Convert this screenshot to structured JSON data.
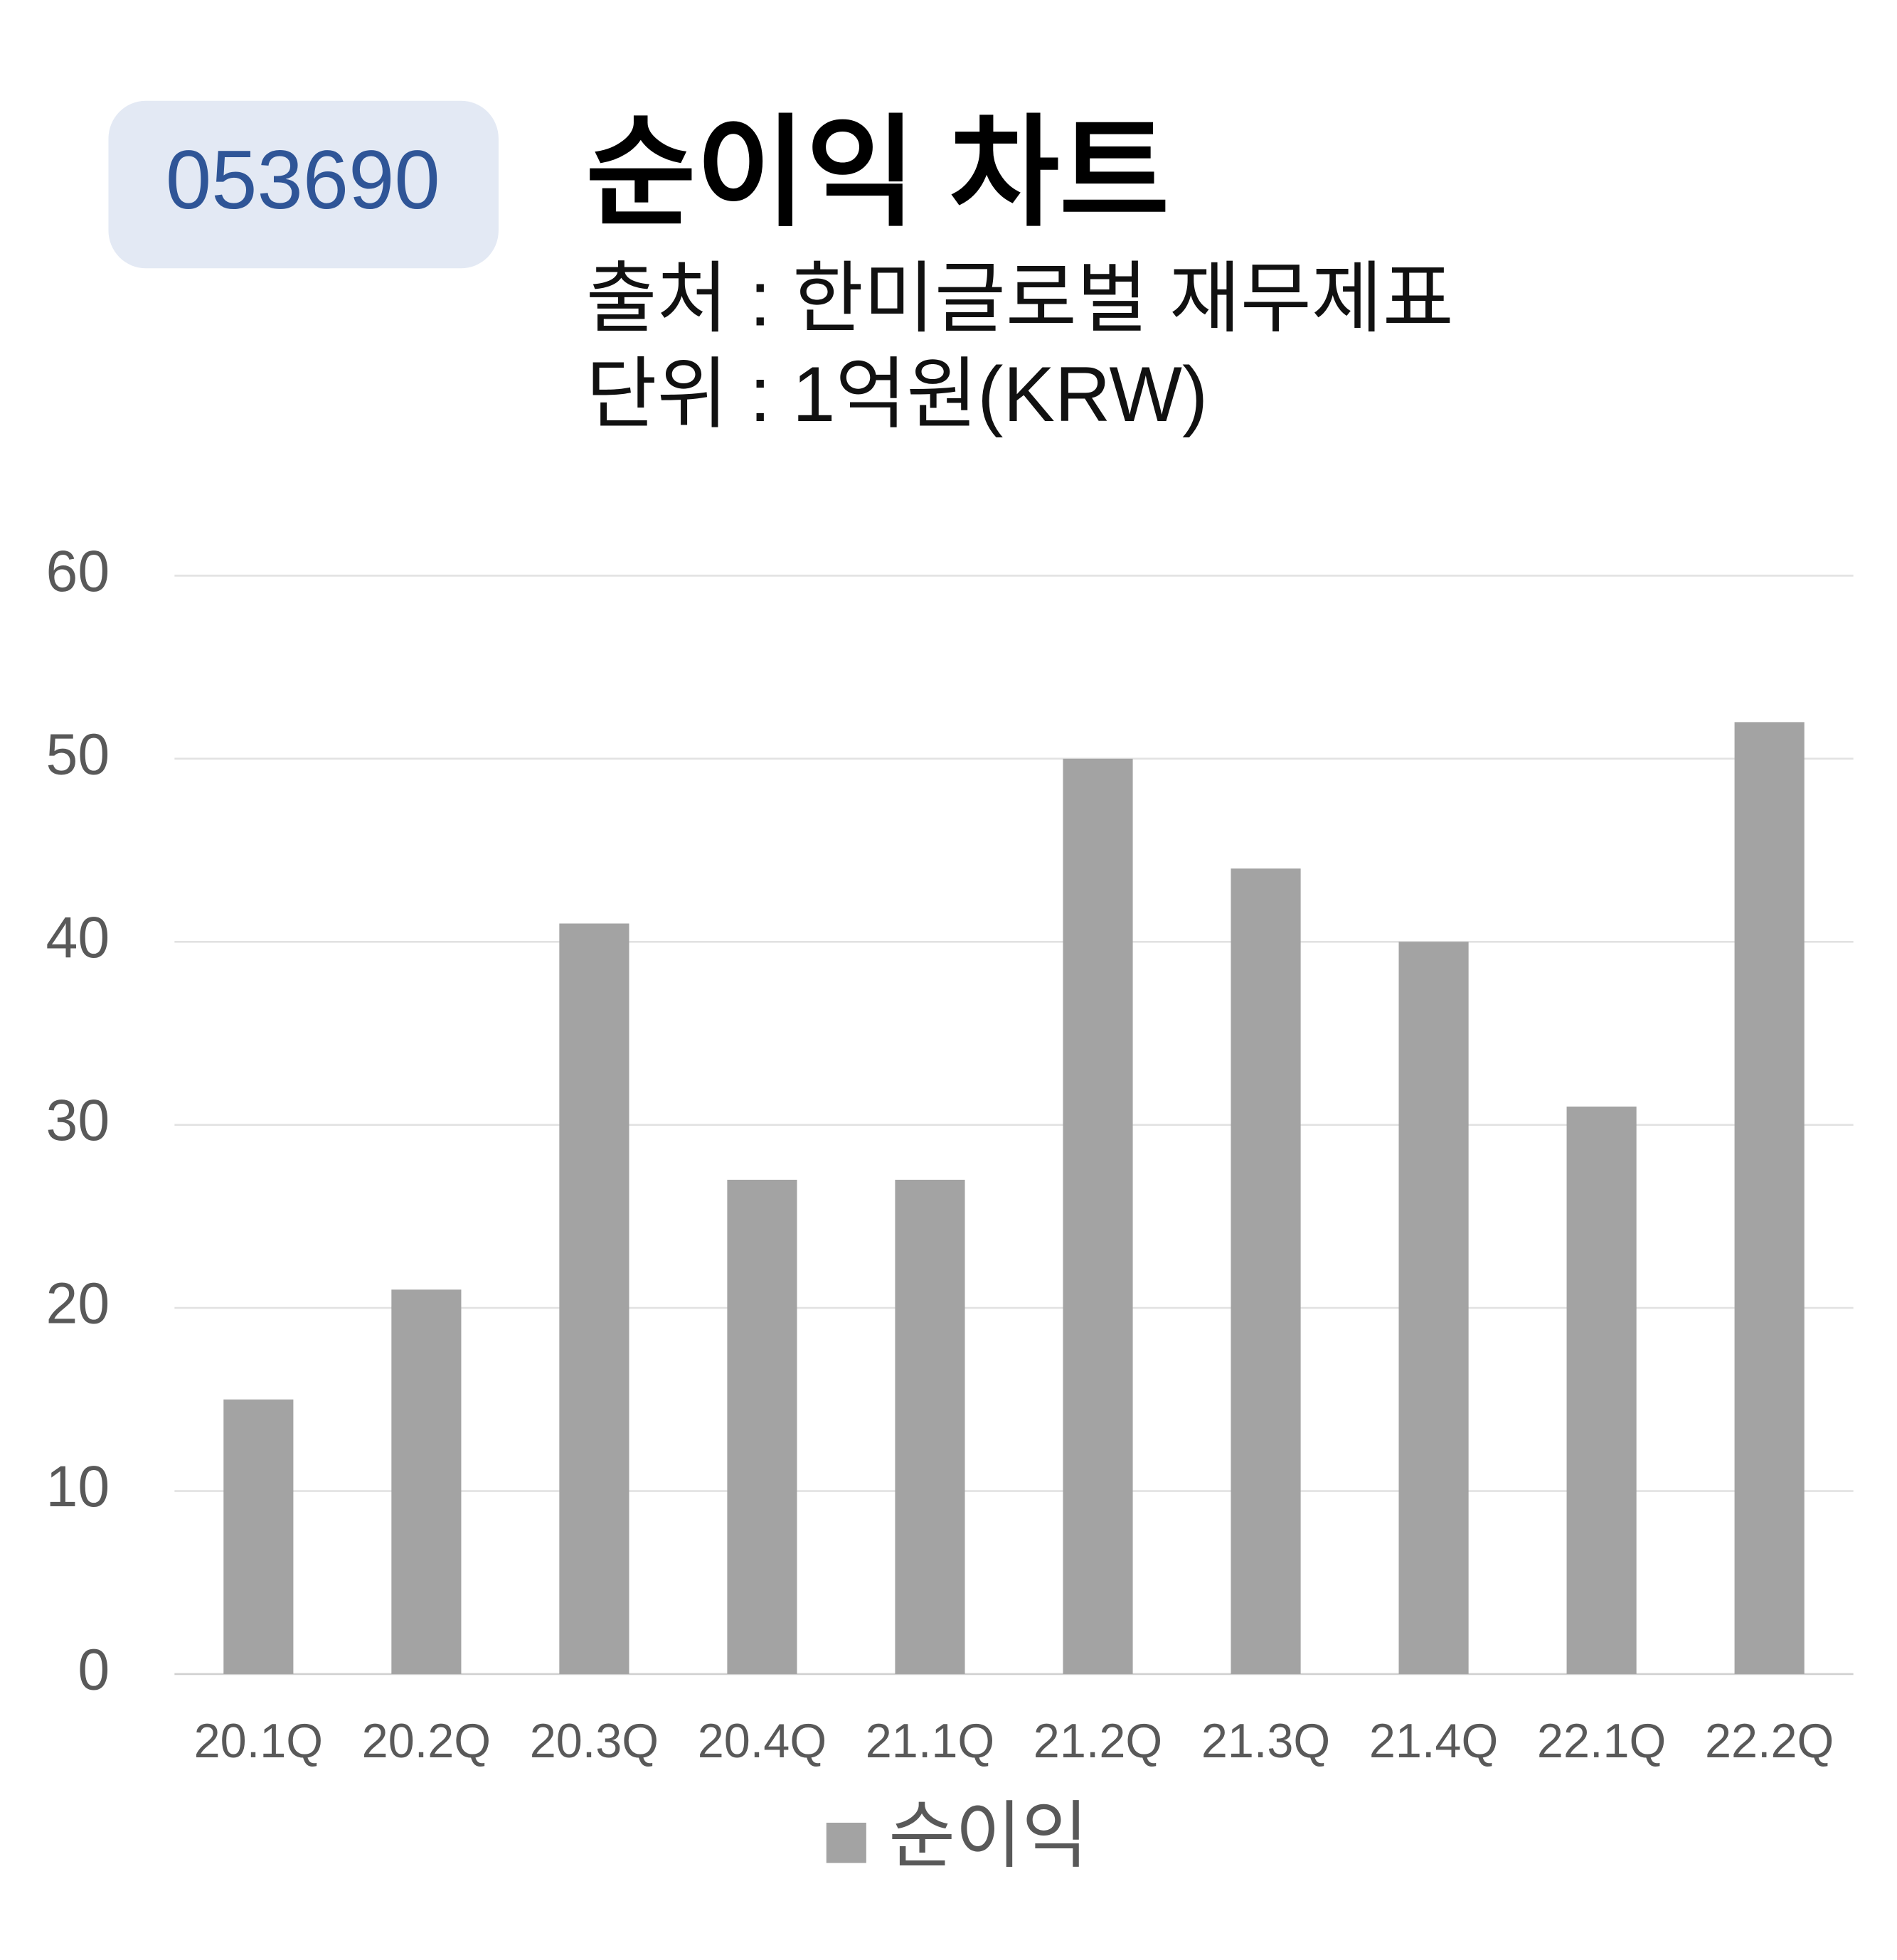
{
  "chart_data": {
    "type": "bar",
    "badge": "053690",
    "title": "순이익 차트",
    "subtitle": [
      "출처 : 한미글로벌 재무제표",
      "단위 : 1억원(KRW)"
    ],
    "categories": [
      "20.1Q",
      "20.2Q",
      "20.3Q",
      "20.4Q",
      "21.1Q",
      "21.2Q",
      "21.3Q",
      "21.4Q",
      "22.1Q",
      "22.2Q"
    ],
    "series": [
      {
        "name": "순이익",
        "color": "#a3a3a3",
        "values": [
          15,
          21,
          41,
          27,
          27,
          50,
          44,
          40,
          31,
          52
        ]
      }
    ],
    "ylim": [
      0,
      60
    ],
    "yticks": [
      0,
      10,
      20,
      30,
      40,
      50,
      60
    ],
    "grid": true,
    "legend": "bottom"
  }
}
